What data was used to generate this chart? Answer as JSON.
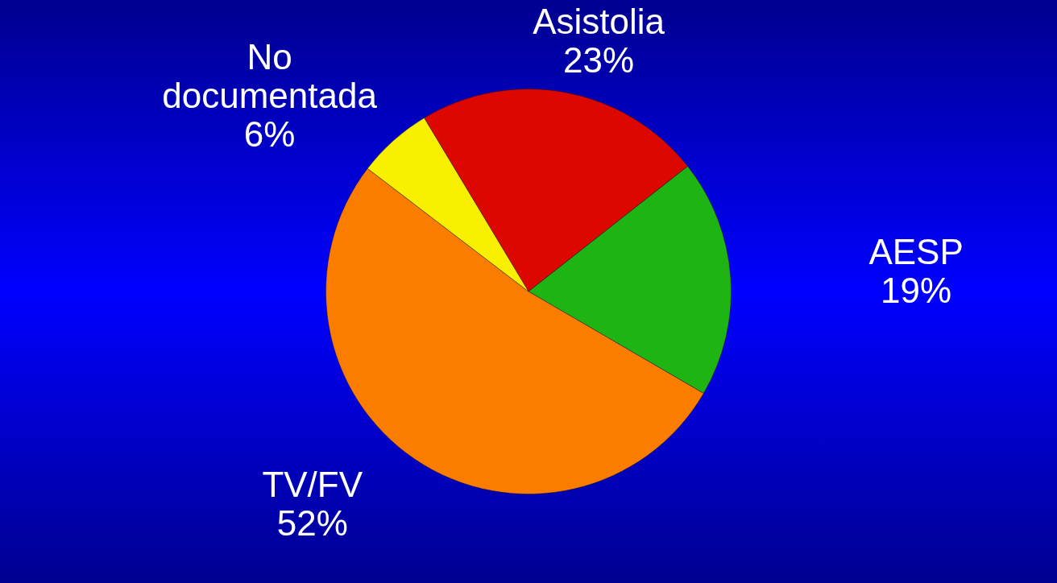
{
  "chart_data": {
    "type": "pie",
    "categories": [
      "Asistolia",
      "AESP",
      "TV/FV",
      "No documentada"
    ],
    "values": [
      23,
      19,
      52,
      6
    ],
    "value_labels": [
      "23%",
      "19%",
      "52%",
      "6%"
    ],
    "colors": [
      "#dc0800",
      "#1eb414",
      "#fb7d00",
      "#f9f000"
    ],
    "legend": false
  }
}
